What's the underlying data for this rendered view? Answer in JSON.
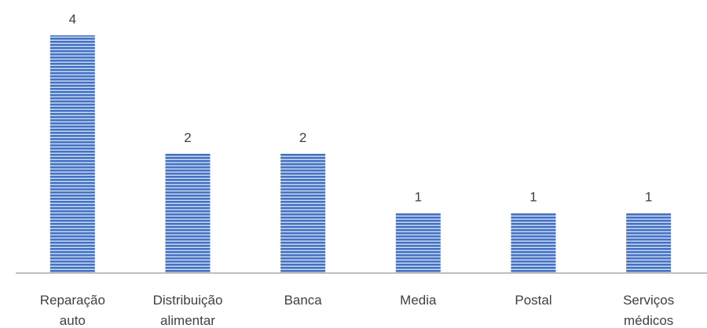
{
  "chart_data": {
    "type": "bar",
    "categories": [
      [
        "Reparação",
        "auto"
      ],
      [
        "Distribuição",
        "alimentar"
      ],
      [
        "Banca"
      ],
      [
        "Media"
      ],
      [
        "Postal"
      ],
      [
        "Serviços",
        "médicos"
      ]
    ],
    "values": [
      4,
      2,
      2,
      1,
      1,
      1
    ],
    "title": "",
    "xlabel": "",
    "ylabel": "",
    "ylim": [
      0,
      4
    ],
    "grid": false,
    "legend": "none",
    "colors": {
      "bar_fill": "#4472c4",
      "bar_stripe": "#ffffff",
      "axis": "#bfbfbf",
      "text": "#404040"
    }
  }
}
